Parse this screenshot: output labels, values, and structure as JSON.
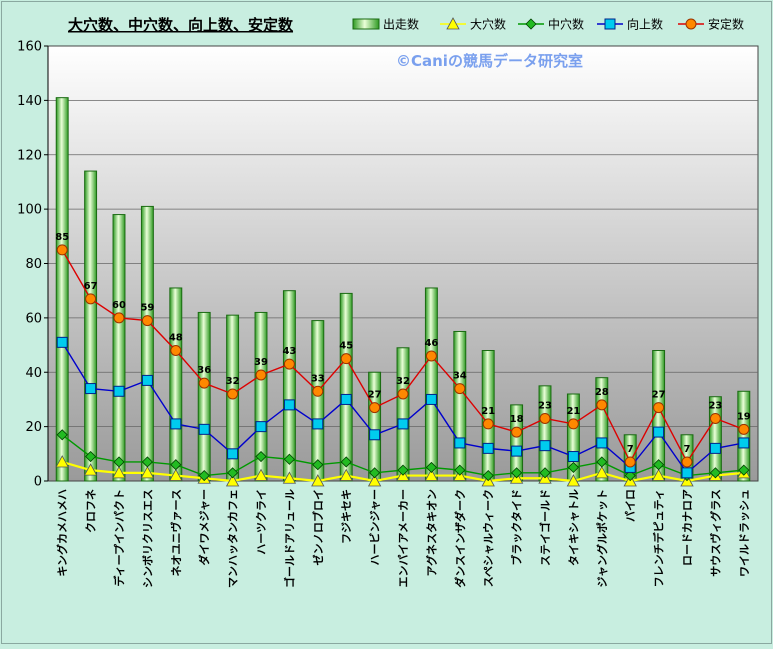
{
  "chart_data": {
    "type": "bar",
    "title": "大穴数、中穴数、向上数、安定数",
    "watermark": "©Caniの競馬データ研究室",
    "xlabel": "",
    "ylabel": "",
    "ylim": [
      0,
      160
    ],
    "yticks": [
      0,
      20,
      40,
      60,
      80,
      100,
      120,
      140,
      160
    ],
    "grid": true,
    "legend_position": "top-right",
    "categories": [
      "キングカメハメハ",
      "クロフネ",
      "ディープインパクト",
      "シンボリクリスエス",
      "ネオユニヴァース",
      "ダイワメジャー",
      "マンハッタンカフェ",
      "ハーツクライ",
      "ゴールドアリュール",
      "ゼンノロブロイ",
      "フジキセキ",
      "ハービンジャー",
      "エンパイアメーカー",
      "アグネスタキオン",
      "ダンスインザダーク",
      "スペシャルウィーク",
      "ブラックタイド",
      "ステイゴールド",
      "タイキシャトル",
      "ジャングルポケット",
      "パイロ",
      "フレンチデピュティ",
      "ロードカナロア",
      "サウスヴィグラス",
      "ワイルドラッシュ"
    ],
    "series": [
      {
        "name": "出走数",
        "kind": "bar",
        "color": "#66cc44",
        "values": [
          141,
          114,
          98,
          101,
          71,
          62,
          61,
          62,
          70,
          59,
          69,
          40,
          49,
          71,
          55,
          48,
          28,
          35,
          32,
          38,
          17,
          48,
          17,
          31,
          33
        ]
      },
      {
        "name": "大穴数",
        "kind": "line",
        "color": "#ffff00",
        "marker": "triangle",
        "values": [
          7,
          4,
          3,
          3,
          2,
          1,
          0,
          2,
          1,
          0,
          2,
          0,
          2,
          2,
          2,
          0,
          1,
          1,
          0,
          3,
          0,
          2,
          0,
          2,
          3
        ]
      },
      {
        "name": "中穴数",
        "kind": "line",
        "color": "#009900",
        "marker": "diamond",
        "values": [
          17,
          9,
          7,
          7,
          6,
          2,
          3,
          9,
          8,
          6,
          7,
          3,
          4,
          5,
          4,
          2,
          3,
          3,
          5,
          7,
          2,
          6,
          2,
          3,
          4
        ]
      },
      {
        "name": "向上数",
        "kind": "line",
        "color": "#0000cc",
        "marker": "square",
        "values": [
          51,
          34,
          33,
          37,
          21,
          19,
          10,
          20,
          28,
          21,
          30,
          17,
          21,
          30,
          14,
          12,
          11,
          13,
          9,
          14,
          5,
          18,
          3,
          12,
          14
        ]
      },
      {
        "name": "安定数",
        "kind": "line",
        "color": "#dd0000",
        "marker": "circle",
        "values": [
          85,
          67,
          60,
          59,
          48,
          36,
          32,
          39,
          43,
          33,
          45,
          27,
          32,
          46,
          34,
          21,
          18,
          23,
          21,
          28,
          7,
          27,
          7,
          23,
          19
        ]
      }
    ],
    "data_labels": {
      "series": "安定数",
      "values": [
        85,
        67,
        60,
        59,
        48,
        36,
        32,
        39,
        43,
        33,
        45,
        27,
        32,
        46,
        34,
        21,
        18,
        23,
        21,
        28,
        7,
        27,
        7,
        23,
        19
      ]
    }
  }
}
